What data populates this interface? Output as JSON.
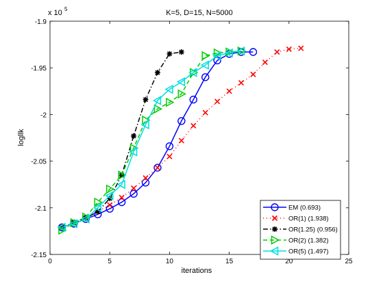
{
  "chart_data": {
    "type": "line",
    "title": "K=5, D=15, N=5000",
    "xlabel": "iterations",
    "ylabel": "logllk",
    "y_exponent_label": "x 10",
    "y_exponent_power": "5",
    "xlim": [
      0,
      25
    ],
    "ylim": [
      -2.15,
      -1.9
    ],
    "xticks": [
      0,
      5,
      10,
      15,
      20,
      25
    ],
    "xtick_labels": [
      "0",
      "5",
      "10",
      "15",
      "20",
      "25"
    ],
    "yticks": [
      -2.15,
      -2.1,
      -2.05,
      -2.0,
      -1.95,
      -1.9
    ],
    "ytick_labels": [
      "-2.15",
      "-2.1",
      "-2.05",
      "-2",
      "-1.95",
      "-1.9"
    ],
    "grid": false,
    "legend_position": "bottom-right",
    "series": [
      {
        "name": "EM (0.693)",
        "color": "#0000ff",
        "dash": "",
        "marker": "circle",
        "x": [
          1,
          2,
          3,
          4,
          5,
          6,
          7,
          8,
          9,
          10,
          11,
          12,
          13,
          14,
          15,
          16,
          17
        ],
        "y": [
          -2.121,
          -2.117,
          -2.112,
          -2.107,
          -2.101,
          -2.094,
          -2.085,
          -2.073,
          -2.057,
          -2.034,
          -2.007,
          -1.984,
          -1.96,
          -1.942,
          -1.935,
          -1.933,
          -1.933
        ]
      },
      {
        "name": "OR(1) (1.938)",
        "color": "#ff0000",
        "dash": "1,4",
        "marker": "x",
        "x": [
          1,
          2,
          3,
          4,
          5,
          6,
          7,
          8,
          9,
          10,
          11,
          12,
          13,
          14,
          15,
          16,
          17,
          18,
          19,
          20,
          21
        ],
        "y": [
          -2.121,
          -2.116,
          -2.111,
          -2.104,
          -2.097,
          -2.089,
          -2.079,
          -2.068,
          -2.057,
          -2.045,
          -2.028,
          -2.012,
          -1.998,
          -1.986,
          -1.975,
          -1.966,
          -1.957,
          -1.944,
          -1.933,
          -1.93,
          -1.929
        ]
      },
      {
        "name": "OR(1.25) (0.956)",
        "color": "#000000",
        "dash": "7,3,1.5,3",
        "marker": "star",
        "x": [
          1,
          2,
          3,
          4,
          5,
          6,
          7,
          8,
          9,
          10,
          11
        ],
        "y": [
          -2.121,
          -2.116,
          -2.111,
          -2.104,
          -2.09,
          -2.065,
          -2.023,
          -1.984,
          -1.955,
          -1.935,
          -1.933
        ]
      },
      {
        "name": "OR(2) (1.382)",
        "color": "#00cc00",
        "dash": "6,4",
        "marker": "triangle-right",
        "x": [
          1,
          2,
          3,
          4,
          5,
          6,
          7,
          8,
          9,
          10,
          11,
          12,
          13,
          14,
          15,
          16
        ],
        "y": [
          -2.124,
          -2.116,
          -2.11,
          -2.094,
          -2.08,
          -2.065,
          -2.036,
          -2.006,
          -1.994,
          -1.987,
          -1.978,
          -1.955,
          -1.937,
          -1.934,
          -1.933,
          -1.932
        ]
      },
      {
        "name": "OR(5) (1.497)",
        "color": "#00dddd",
        "dash": "",
        "marker": "triangle-left",
        "x": [
          1,
          2,
          3,
          4,
          5,
          6,
          7,
          8,
          9,
          10,
          11,
          12,
          13,
          14,
          15,
          16
        ],
        "y": [
          -2.121,
          -2.117,
          -2.112,
          -2.1,
          -2.087,
          -2.075,
          -2.04,
          -2.011,
          -1.985,
          -1.973,
          -1.965,
          -1.955,
          -1.947,
          -1.937,
          -1.934,
          -1.932
        ]
      }
    ]
  }
}
